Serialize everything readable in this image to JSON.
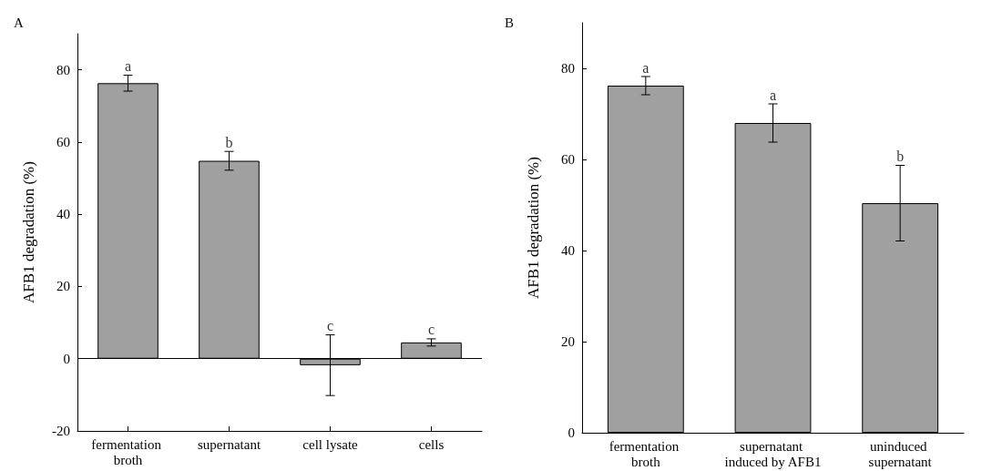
{
  "chart_data": [
    {
      "type": "bar",
      "title": "A",
      "ylabel": "AFB1 degradation (%)",
      "categories": [
        "fermentation broth",
        "supernatant",
        "cell lysate",
        "cells"
      ],
      "values": [
        76.3,
        54.8,
        -1.8,
        4.5
      ],
      "errors": [
        2.2,
        2.6,
        8.4,
        1.0
      ],
      "color": "#a0a0a0",
      "ylim": [
        -20,
        90
      ],
      "yticks": [
        -20,
        0,
        20,
        40,
        60,
        80
      ],
      "ref_lines": [
        {
          "axis": "y",
          "value": 0,
          "color": "#000000"
        }
      ],
      "annotations": [
        {
          "text": "a",
          "x": "fermentation broth",
          "y": 78.5
        },
        {
          "text": "b",
          "x": "supernatant",
          "y": 57.4
        },
        {
          "text": "c",
          "x": "cell lysate",
          "y": 6.6
        },
        {
          "text": "c",
          "x": "cells",
          "y": 5.5
        }
      ]
    },
    {
      "type": "bar",
      "title": "B",
      "ylabel": "AFB1 degradation (%)",
      "categories": [
        "fermentation broth",
        "supernatant induced by AFB1",
        "uninduced supernatant"
      ],
      "values": [
        76.2,
        68.0,
        50.4
      ],
      "errors": [
        2.0,
        4.2,
        8.3
      ],
      "color": "#a0a0a0",
      "ylim": [
        0,
        90
      ],
      "yticks": [
        0,
        20,
        40,
        60,
        80
      ],
      "annotations": [
        {
          "text": "a",
          "x": "fermentation broth",
          "y": 78.2
        },
        {
          "text": "a",
          "x": "supernatant induced by AFB1",
          "y": 72.2
        },
        {
          "text": "b",
          "x": "uninduced supernatant",
          "y": 58.7
        }
      ]
    }
  ]
}
